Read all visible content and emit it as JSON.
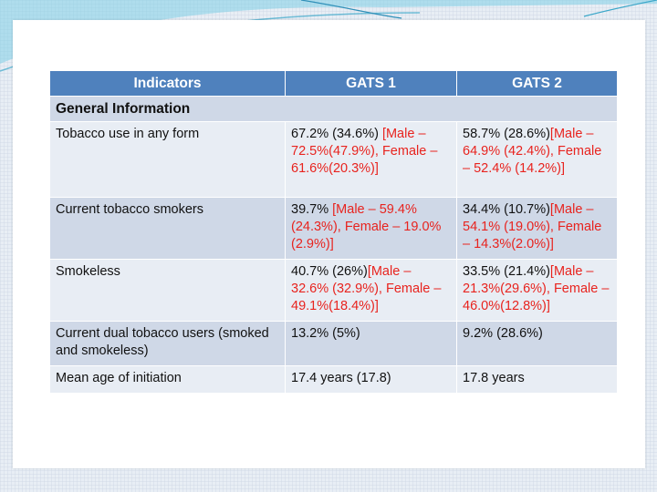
{
  "table": {
    "headers": [
      "Indicators",
      "GATS 1",
      "GATS 2"
    ],
    "section_title": "General Information",
    "rows": [
      {
        "indicator": "Tobacco use in any form",
        "gats1": {
          "main": "67.2% (34.6%) ",
          "detail": "[Male – 72.5%(47.9%), Female – 61.6%(20.3%)]"
        },
        "gats2": {
          "main": "58.7% (28.6%)",
          "detail": "[Male – 64.9% (42.4%), Female – 52.4% (14.2%)]"
        }
      },
      {
        "indicator": "Current tobacco smokers",
        "gats1": {
          "main": "39.7% ",
          "detail": "[Male – 59.4% (24.3%), Female – 19.0%(2.9%)]"
        },
        "gats2": {
          "main": "34.4% (10.7%)",
          "detail": "[Male – 54.1% (19.0%), Female – 14.3%(2.0%)]"
        }
      },
      {
        "indicator": "Smokeless",
        "gats1": {
          "main": "40.7% (26%)",
          "detail": "[Male – 32.6% (32.9%), Female – 49.1%(18.4%)]"
        },
        "gats2": {
          "main": "33.5% (21.4%)",
          "detail": "[Male – 21.3%(29.6%), Female – 46.0%(12.8%)]"
        }
      },
      {
        "indicator": "Current dual tobacco users (smoked and smokeless)",
        "gats1": {
          "main": "13.2% (5%)",
          "detail": ""
        },
        "gats2": {
          "main": "9.2% (28.6%)",
          "detail": ""
        }
      },
      {
        "indicator": "Mean age of initiation",
        "gats1": {
          "main": "17.4 years (17.8)",
          "detail": ""
        },
        "gats2": {
          "main": "17.8 years",
          "detail": ""
        }
      }
    ]
  },
  "colors": {
    "header_bg": "#4f81bd",
    "row_dark": "#cfd8e7",
    "row_light": "#e8edf4",
    "highlight_text": "#e8231e"
  }
}
